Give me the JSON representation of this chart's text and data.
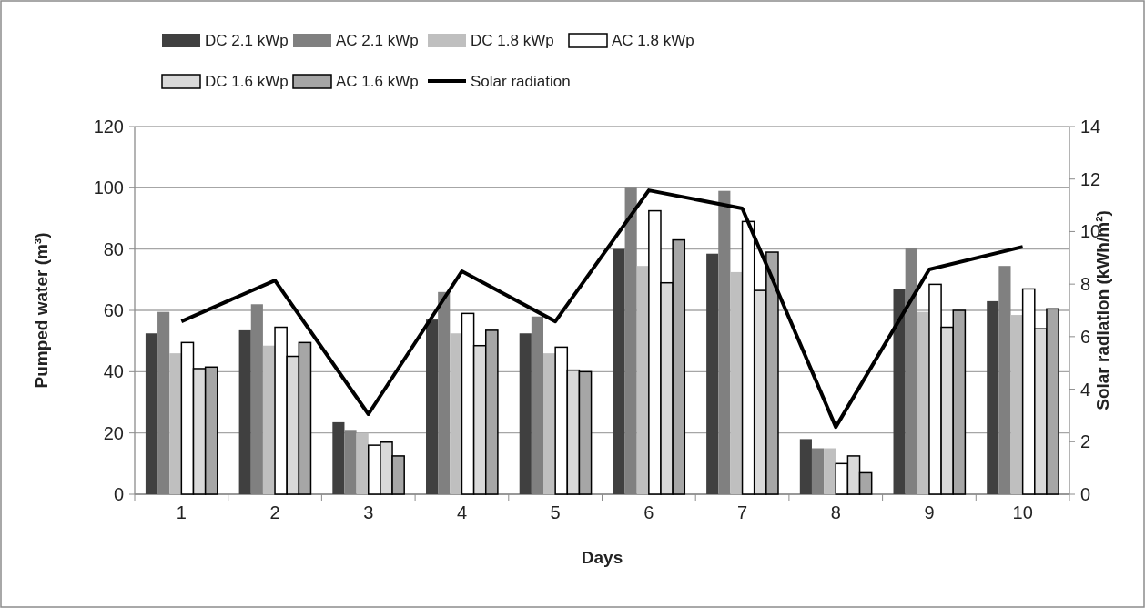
{
  "chart_data": {
    "type": "bar",
    "xlabel": "Days",
    "ylabel": "Pumped water (m³)",
    "y2label": "Solar radiation (kWh/m²)",
    "categories": [
      "1",
      "2",
      "3",
      "4",
      "5",
      "6",
      "7",
      "8",
      "9",
      "10"
    ],
    "series": [
      {
        "name": "DC 2.1 kWp",
        "color": "#404040",
        "values": [
          52.5,
          53.5,
          23.5,
          57,
          52.5,
          80,
          78.5,
          18,
          67,
          63
        ]
      },
      {
        "name": "AC 2.1 kWp",
        "color": "#808080",
        "values": [
          59.5,
          62,
          21,
          66,
          58,
          100,
          99,
          15,
          80.5,
          74.5
        ]
      },
      {
        "name": "DC 1.8 kWp",
        "color": "#bfbfbf",
        "values": [
          46,
          48.5,
          20,
          52.5,
          46,
          74.5,
          72.5,
          15,
          59.5,
          58.5
        ]
      },
      {
        "name": "AC 1.8 kWp",
        "color": "#ffffff",
        "values": [
          49.5,
          54.5,
          16,
          59,
          48,
          92.5,
          89,
          10,
          68.5,
          67
        ]
      },
      {
        "name": "DC 1.6 kWp",
        "color": "#d9d9d9",
        "values": [
          41,
          45,
          17,
          48.5,
          40.5,
          69,
          66.5,
          12.5,
          54.5,
          54
        ]
      },
      {
        "name": "AC 1.6 kWp",
        "color": "#a6a6a6",
        "values": [
          41.5,
          49.5,
          12.5,
          53.5,
          40,
          83,
          79,
          7,
          60,
          60.5
        ]
      },
      {
        "name": "Solar radiation",
        "type": "line",
        "axis": "y2",
        "color": "#000000",
        "values": [
          6.58,
          8.14,
          3.05,
          8.49,
          6.58,
          11.57,
          10.88,
          2.56,
          8.56,
          9.42
        ]
      }
    ],
    "ylim": [
      0,
      120
    ],
    "yticks": [
      0,
      20,
      40,
      60,
      80,
      100,
      120
    ],
    "y2lim": [
      0,
      14
    ],
    "y2ticks": [
      0,
      2,
      4,
      6,
      8,
      10,
      12,
      14
    ],
    "grid": "y",
    "legend": "top",
    "marker": "none",
    "line_style": "solid"
  }
}
